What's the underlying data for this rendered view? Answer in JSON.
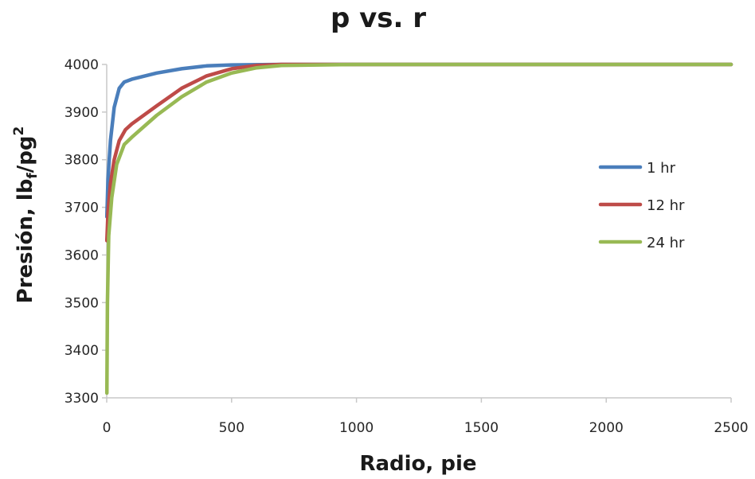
{
  "chart_data": {
    "type": "line",
    "title": "p vs. r",
    "xlabel": "Radio, pie",
    "ylabel_main": "Presión, lb",
    "ylabel_sub": "f",
    "ylabel_mid": "/pg",
    "ylabel_sup": "2",
    "xlim": [
      0,
      2500
    ],
    "ylim": [
      3300,
      4000
    ],
    "x_ticks": [
      0,
      500,
      1000,
      1500,
      2000,
      2500
    ],
    "y_ticks": [
      3300,
      3400,
      3500,
      3600,
      3700,
      3800,
      3900,
      4000
    ],
    "grid": false,
    "legend_position": "right",
    "series": [
      {
        "name": "1 hr",
        "color": "#4a7ebb",
        "points": [
          [
            0.5,
            3680
          ],
          [
            5,
            3760
          ],
          [
            15,
            3840
          ],
          [
            30,
            3910
          ],
          [
            50,
            3950
          ],
          [
            70,
            3963
          ],
          [
            100,
            3969
          ],
          [
            200,
            3982
          ],
          [
            300,
            3991
          ],
          [
            400,
            3997
          ],
          [
            500,
            3999
          ],
          [
            700,
            4000
          ],
          [
            1000,
            4000
          ],
          [
            2500,
            4000
          ]
        ]
      },
      {
        "name": "12 hr",
        "color": "#be4b48",
        "points": [
          [
            0.5,
            3630
          ],
          [
            5,
            3690
          ],
          [
            15,
            3750
          ],
          [
            30,
            3800
          ],
          [
            50,
            3840
          ],
          [
            75,
            3863
          ],
          [
            100,
            3875
          ],
          [
            200,
            3913
          ],
          [
            300,
            3950
          ],
          [
            400,
            3976
          ],
          [
            500,
            3991
          ],
          [
            600,
            3998
          ],
          [
            700,
            4000
          ],
          [
            1000,
            4000
          ],
          [
            2500,
            4000
          ]
        ]
      },
      {
        "name": "24 hr",
        "color": "#98b954",
        "points": [
          [
            0.5,
            3310
          ],
          [
            3,
            3500
          ],
          [
            8,
            3640
          ],
          [
            20,
            3720
          ],
          [
            40,
            3790
          ],
          [
            70,
            3832
          ],
          [
            100,
            3847
          ],
          [
            200,
            3893
          ],
          [
            300,
            3932
          ],
          [
            400,
            3963
          ],
          [
            500,
            3982
          ],
          [
            600,
            3993
          ],
          [
            700,
            3998
          ],
          [
            1000,
            4000
          ],
          [
            2500,
            4000
          ]
        ]
      }
    ]
  }
}
